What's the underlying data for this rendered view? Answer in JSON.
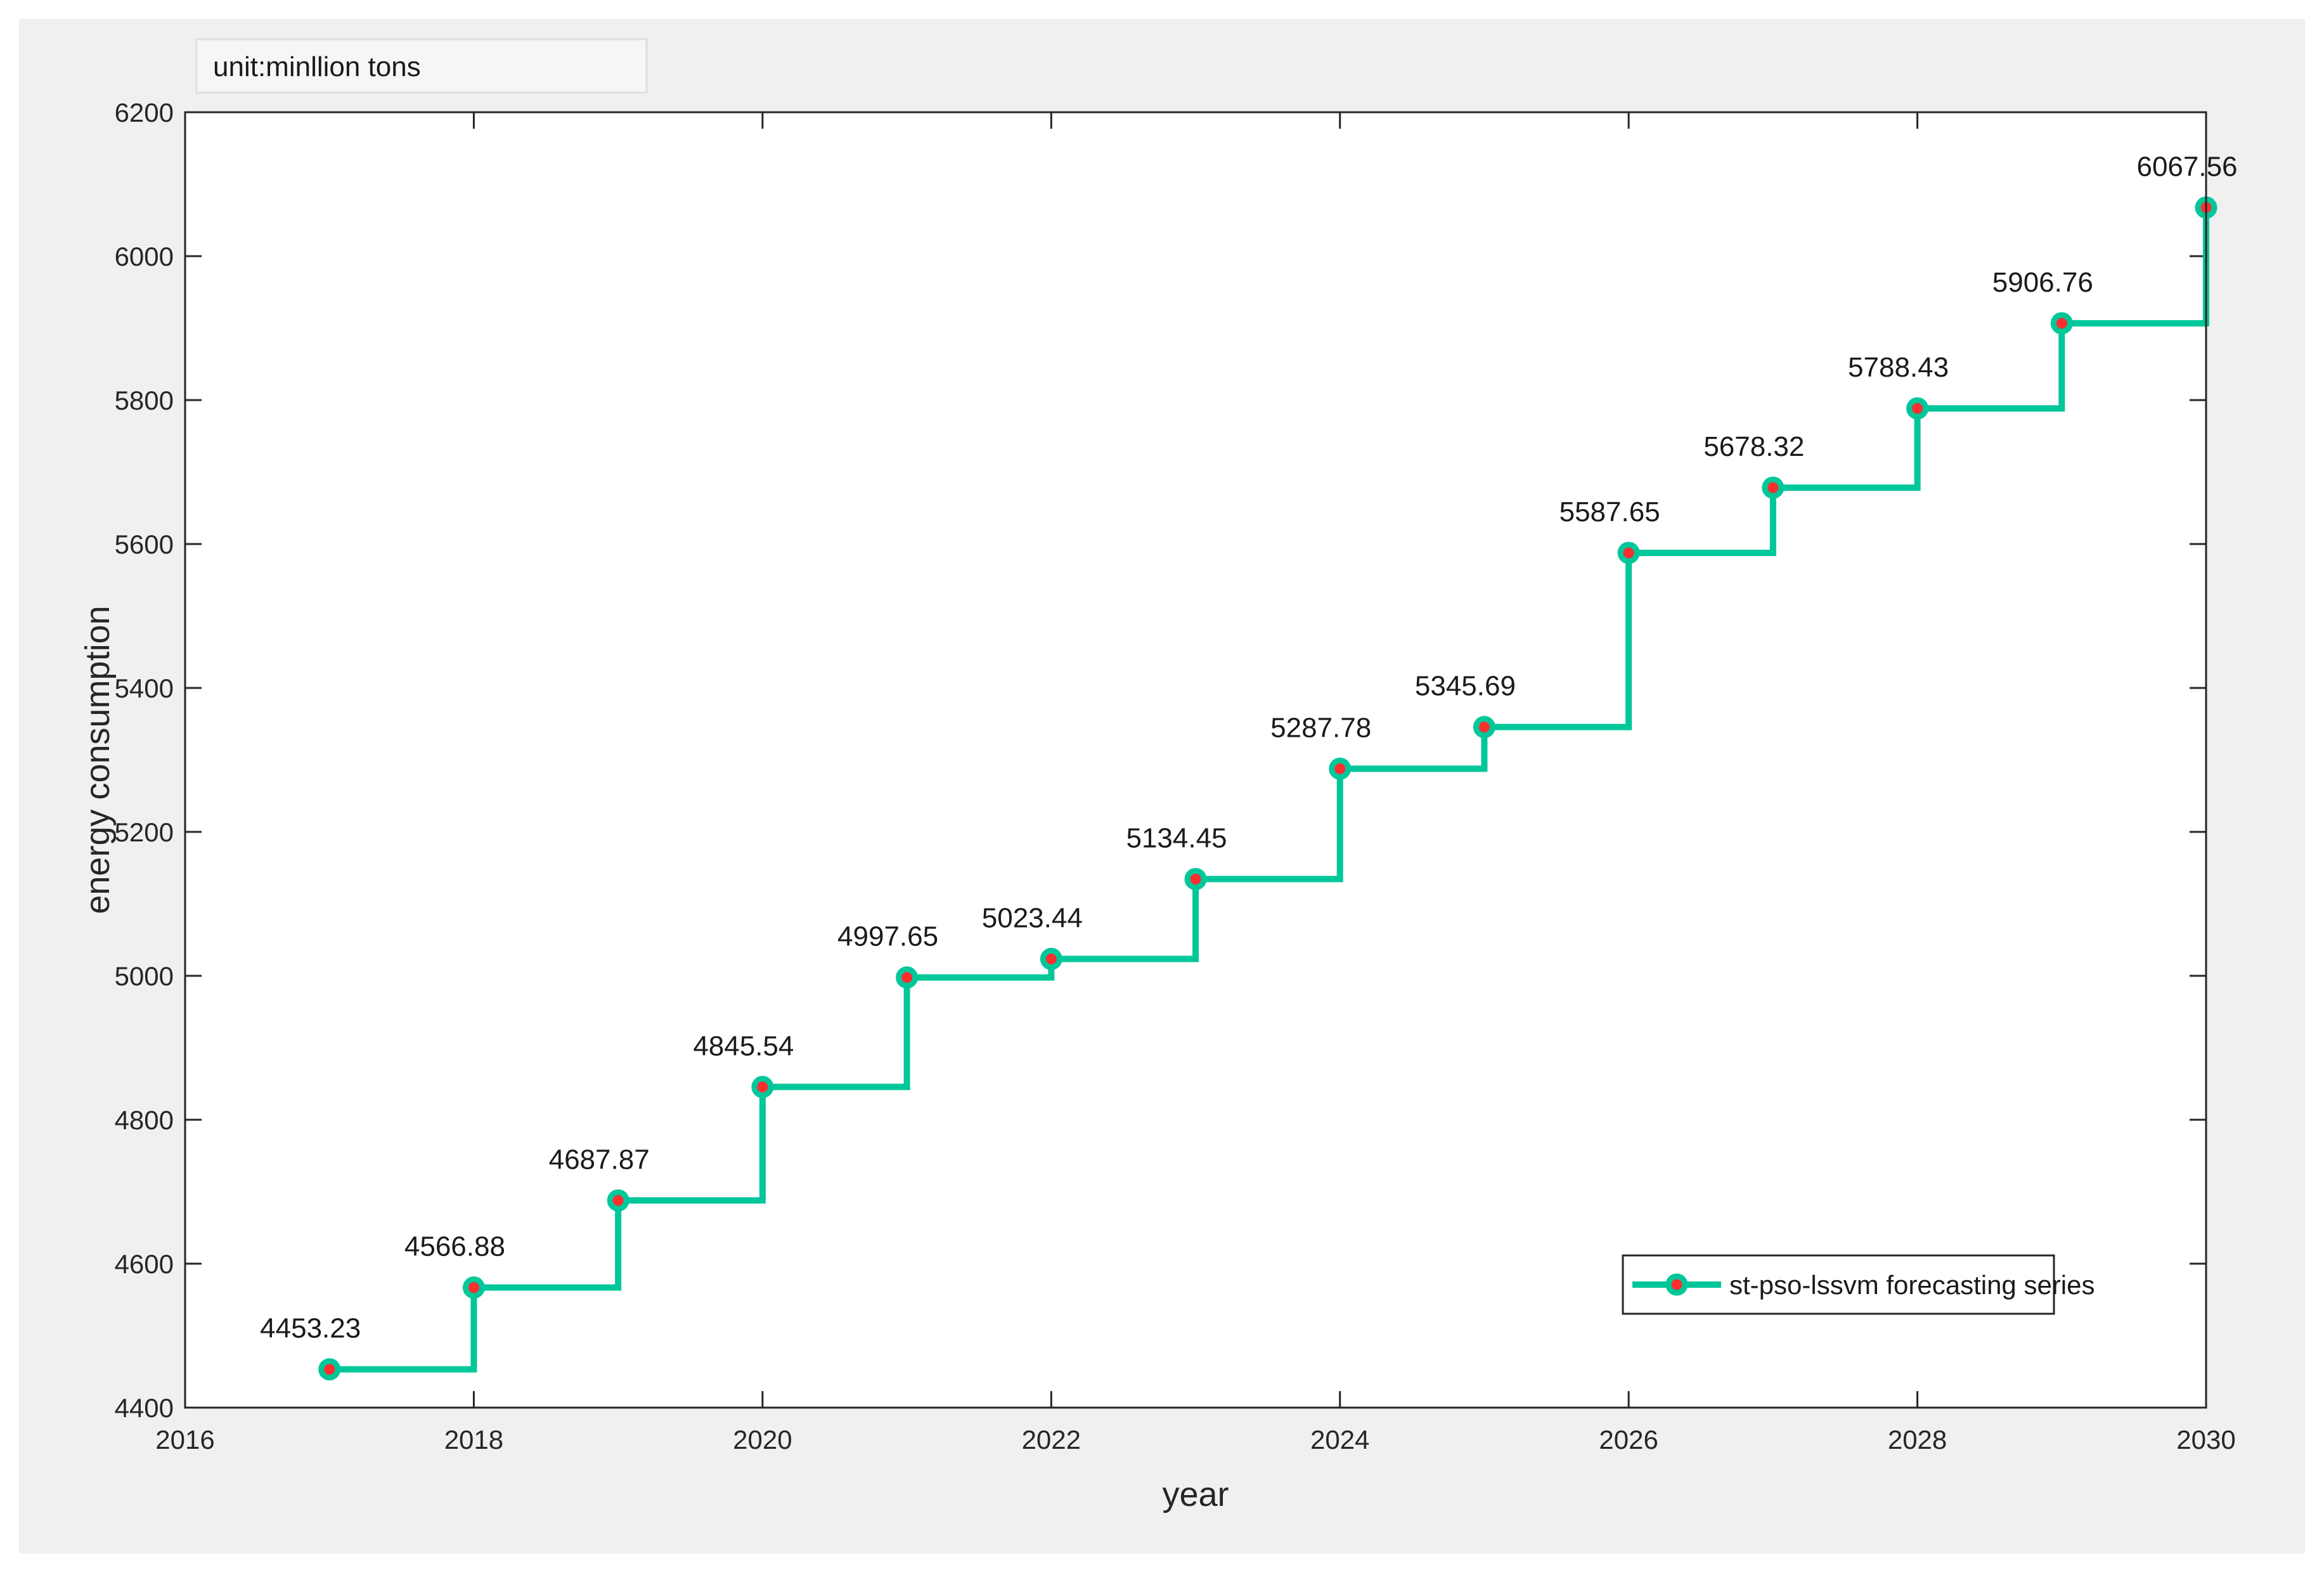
{
  "chart_data": {
    "type": "line",
    "step": true,
    "x": [
      2017,
      2018,
      2019,
      2020,
      2021,
      2022,
      2023,
      2024,
      2025,
      2026,
      2027,
      2028,
      2029,
      2030
    ],
    "series": [
      {
        "name": "st-pso-lssvm forecasting series",
        "values": [
          4453.23,
          4566.88,
          4687.87,
          4845.54,
          4997.65,
          5023.44,
          5134.45,
          5287.78,
          5345.69,
          5587.65,
          5678.32,
          5788.43,
          5906.76,
          6067.56
        ],
        "labels": [
          "4453.23",
          "4566.88",
          "4687.87",
          "4845.54",
          "4997.65",
          "5023.44",
          "5134.45",
          "5287.78",
          "5345.69",
          "5587.65",
          "5678.32",
          "5788.43",
          "5906.76",
          "6067.56"
        ]
      }
    ],
    "xlabel": "year",
    "ylabel": "energy consumption",
    "annotation": "unit:minllion tons",
    "xlim": [
      2016,
      2030
    ],
    "ylim": [
      4400,
      6200
    ],
    "xticks": [
      2016,
      2018,
      2020,
      2022,
      2024,
      2026,
      2028,
      2030
    ],
    "yticks": [
      4400,
      4600,
      4800,
      5000,
      5200,
      5400,
      5600,
      5800,
      6000,
      6200
    ],
    "grid": false,
    "legend_position": "bottom-right",
    "colors": {
      "line": "#00c79a",
      "marker_edge": "#00c79a",
      "marker_face": "#ff2e2e",
      "figure_background": "#f0f0f0",
      "axes_background": "#ffffff"
    }
  }
}
